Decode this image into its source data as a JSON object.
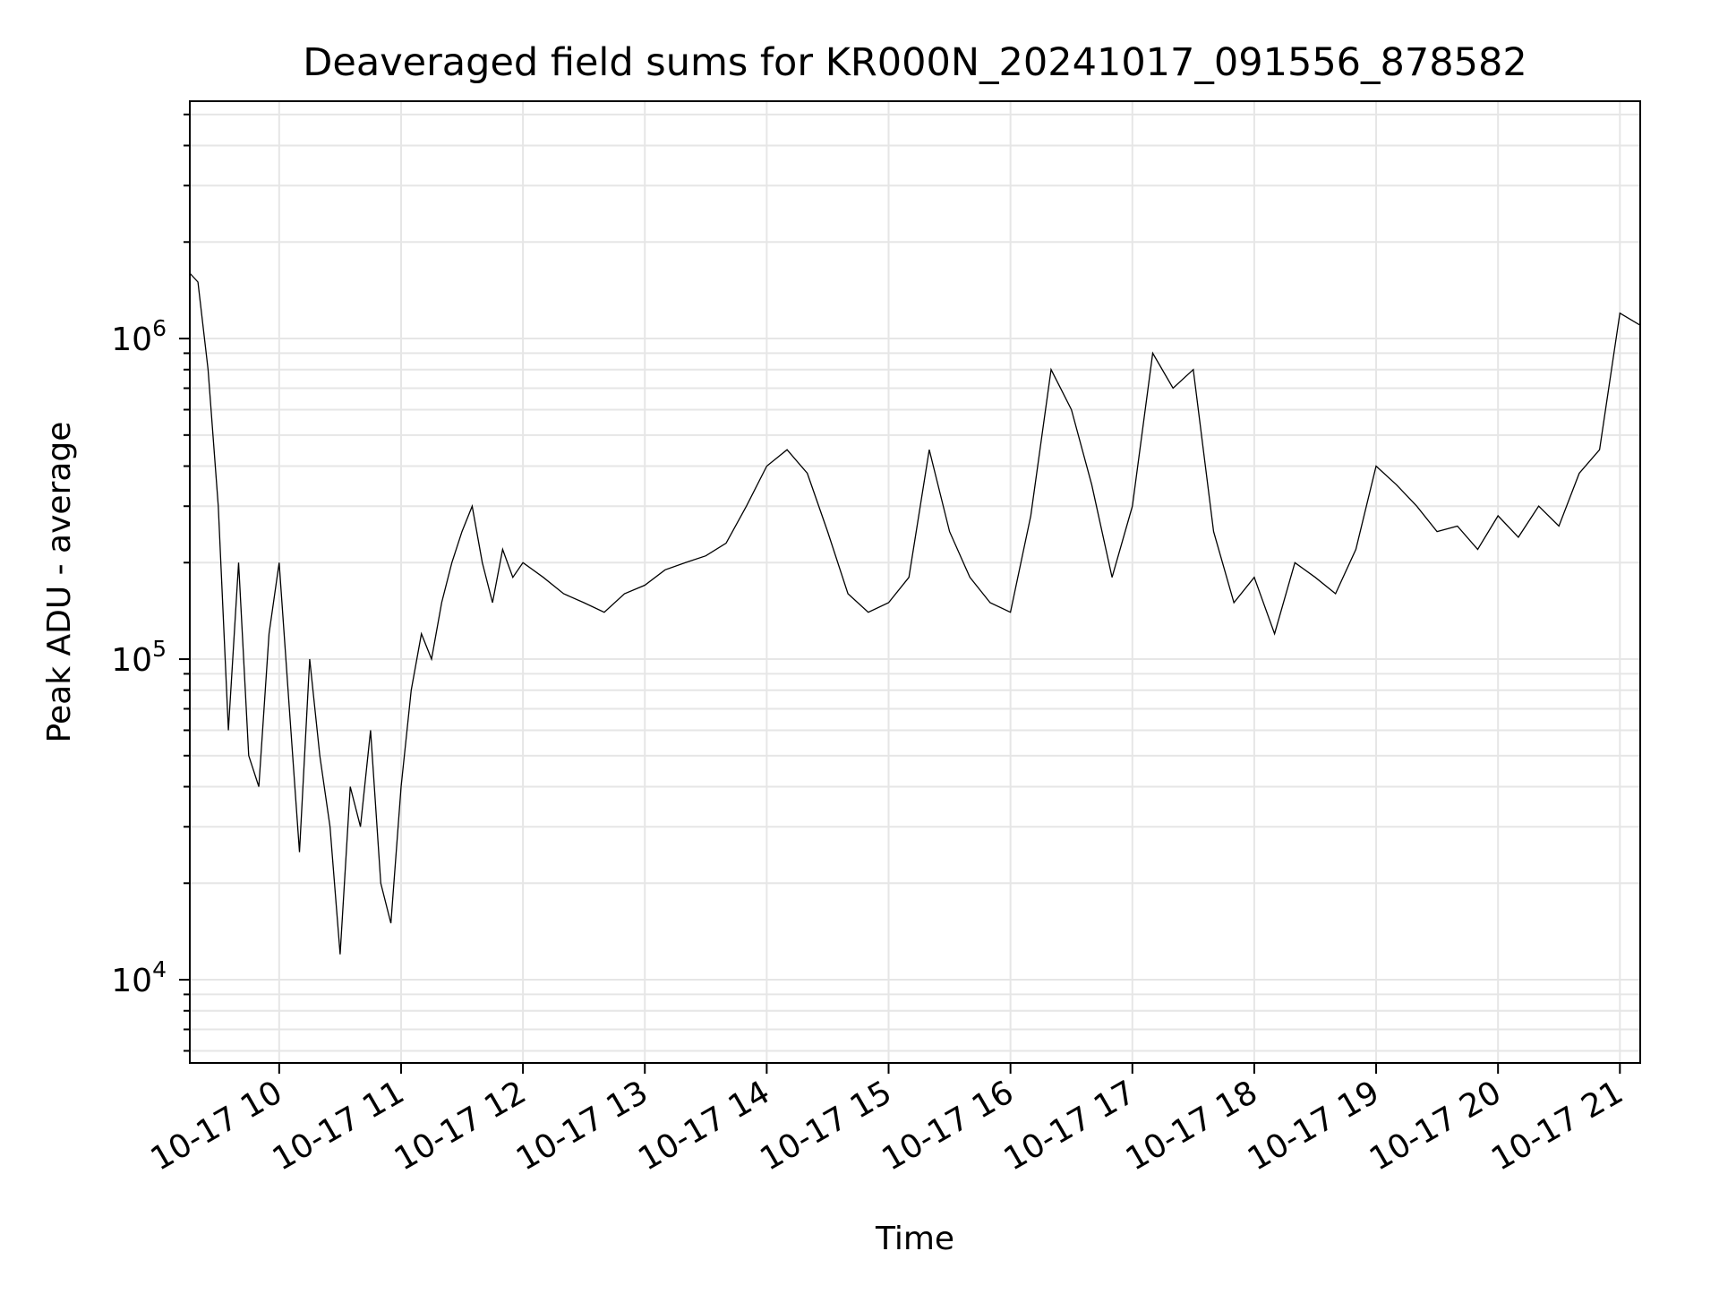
{
  "chart_data": {
    "type": "line",
    "title": "Deaveraged field sums for KR000N_20241017_091556_878582",
    "xlabel": "Time",
    "ylabel": "Peak ADU - average",
    "yscale": "log",
    "ylim": [
      5500,
      5500000
    ],
    "xlim": [
      "2024-10-17 09:16",
      "2024-10-17 21:10"
    ],
    "x_ticks": [
      {
        "value": "2024-10-17 10:00",
        "label": "10-17 10"
      },
      {
        "value": "2024-10-17 11:00",
        "label": "10-17 11"
      },
      {
        "value": "2024-10-17 12:00",
        "label": "10-17 12"
      },
      {
        "value": "2024-10-17 13:00",
        "label": "10-17 13"
      },
      {
        "value": "2024-10-17 14:00",
        "label": "10-17 14"
      },
      {
        "value": "2024-10-17 15:00",
        "label": "10-17 15"
      },
      {
        "value": "2024-10-17 16:00",
        "label": "10-17 16"
      },
      {
        "value": "2024-10-17 17:00",
        "label": "10-17 17"
      },
      {
        "value": "2024-10-17 18:00",
        "label": "10-17 18"
      },
      {
        "value": "2024-10-17 19:00",
        "label": "10-17 19"
      },
      {
        "value": "2024-10-17 20:00",
        "label": "10-17 20"
      },
      {
        "value": "2024-10-17 21:00",
        "label": "10-17 21"
      }
    ],
    "y_ticks": [
      {
        "value": 10000,
        "base": "10",
        "exp": "4"
      },
      {
        "value": 100000,
        "base": "10",
        "exp": "5"
      },
      {
        "value": 1000000,
        "base": "10",
        "exp": "6"
      }
    ],
    "grid": true,
    "grid_color": "#e6e6e6",
    "line_color": "#000000",
    "series": [
      {
        "x": [
          "2024-10-17 09:16",
          "2024-10-17 09:20",
          "2024-10-17 09:25",
          "2024-10-17 09:30",
          "2024-10-17 09:35",
          "2024-10-17 09:40",
          "2024-10-17 09:45",
          "2024-10-17 09:50",
          "2024-10-17 09:55",
          "2024-10-17 10:00",
          "2024-10-17 10:05",
          "2024-10-17 10:10",
          "2024-10-17 10:15",
          "2024-10-17 10:20",
          "2024-10-17 10:25",
          "2024-10-17 10:30",
          "2024-10-17 10:35",
          "2024-10-17 10:40",
          "2024-10-17 10:45",
          "2024-10-17 10:50",
          "2024-10-17 10:55",
          "2024-10-17 11:00",
          "2024-10-17 11:05",
          "2024-10-17 11:10",
          "2024-10-17 11:15",
          "2024-10-17 11:20",
          "2024-10-17 11:25",
          "2024-10-17 11:30",
          "2024-10-17 11:35",
          "2024-10-17 11:40",
          "2024-10-17 11:45",
          "2024-10-17 11:50",
          "2024-10-17 11:55",
          "2024-10-17 12:00",
          "2024-10-17 12:10",
          "2024-10-17 12:20",
          "2024-10-17 12:30",
          "2024-10-17 12:40",
          "2024-10-17 12:50",
          "2024-10-17 13:00",
          "2024-10-17 13:10",
          "2024-10-17 13:20",
          "2024-10-17 13:30",
          "2024-10-17 13:40",
          "2024-10-17 13:50",
          "2024-10-17 14:00",
          "2024-10-17 14:10",
          "2024-10-17 14:20",
          "2024-10-17 14:30",
          "2024-10-17 14:40",
          "2024-10-17 14:50",
          "2024-10-17 15:00",
          "2024-10-17 15:10",
          "2024-10-17 15:20",
          "2024-10-17 15:30",
          "2024-10-17 15:40",
          "2024-10-17 15:50",
          "2024-10-17 16:00",
          "2024-10-17 16:10",
          "2024-10-17 16:20",
          "2024-10-17 16:30",
          "2024-10-17 16:40",
          "2024-10-17 16:50",
          "2024-10-17 17:00",
          "2024-10-17 17:10",
          "2024-10-17 17:20",
          "2024-10-17 17:30",
          "2024-10-17 17:40",
          "2024-10-17 17:50",
          "2024-10-17 18:00",
          "2024-10-17 18:10",
          "2024-10-17 18:20",
          "2024-10-17 18:30",
          "2024-10-17 18:40",
          "2024-10-17 18:50",
          "2024-10-17 19:00",
          "2024-10-17 19:10",
          "2024-10-17 19:20",
          "2024-10-17 19:30",
          "2024-10-17 19:40",
          "2024-10-17 19:50",
          "2024-10-17 20:00",
          "2024-10-17 20:10",
          "2024-10-17 20:20",
          "2024-10-17 20:30",
          "2024-10-17 20:40",
          "2024-10-17 20:50",
          "2024-10-17 21:00",
          "2024-10-17 21:10"
        ],
        "y": [
          1600000,
          1500000,
          800000,
          300000,
          60000,
          200000,
          50000,
          40000,
          120000,
          200000,
          70000,
          25000,
          100000,
          50000,
          30000,
          12000,
          40000,
          30000,
          60000,
          20000,
          15000,
          40000,
          80000,
          120000,
          100000,
          150000,
          200000,
          250000,
          300000,
          200000,
          150000,
          220000,
          180000,
          200000,
          180000,
          160000,
          150000,
          140000,
          160000,
          170000,
          190000,
          200000,
          210000,
          230000,
          300000,
          400000,
          450000,
          380000,
          250000,
          160000,
          140000,
          150000,
          180000,
          450000,
          250000,
          180000,
          150000,
          140000,
          280000,
          800000,
          600000,
          350000,
          180000,
          300000,
          900000,
          700000,
          800000,
          250000,
          150000,
          180000,
          120000,
          200000,
          180000,
          160000,
          220000,
          400000,
          350000,
          300000,
          250000,
          260000,
          220000,
          280000,
          240000,
          300000,
          260000,
          380000,
          450000,
          1200000,
          1100000
        ]
      }
    ]
  }
}
